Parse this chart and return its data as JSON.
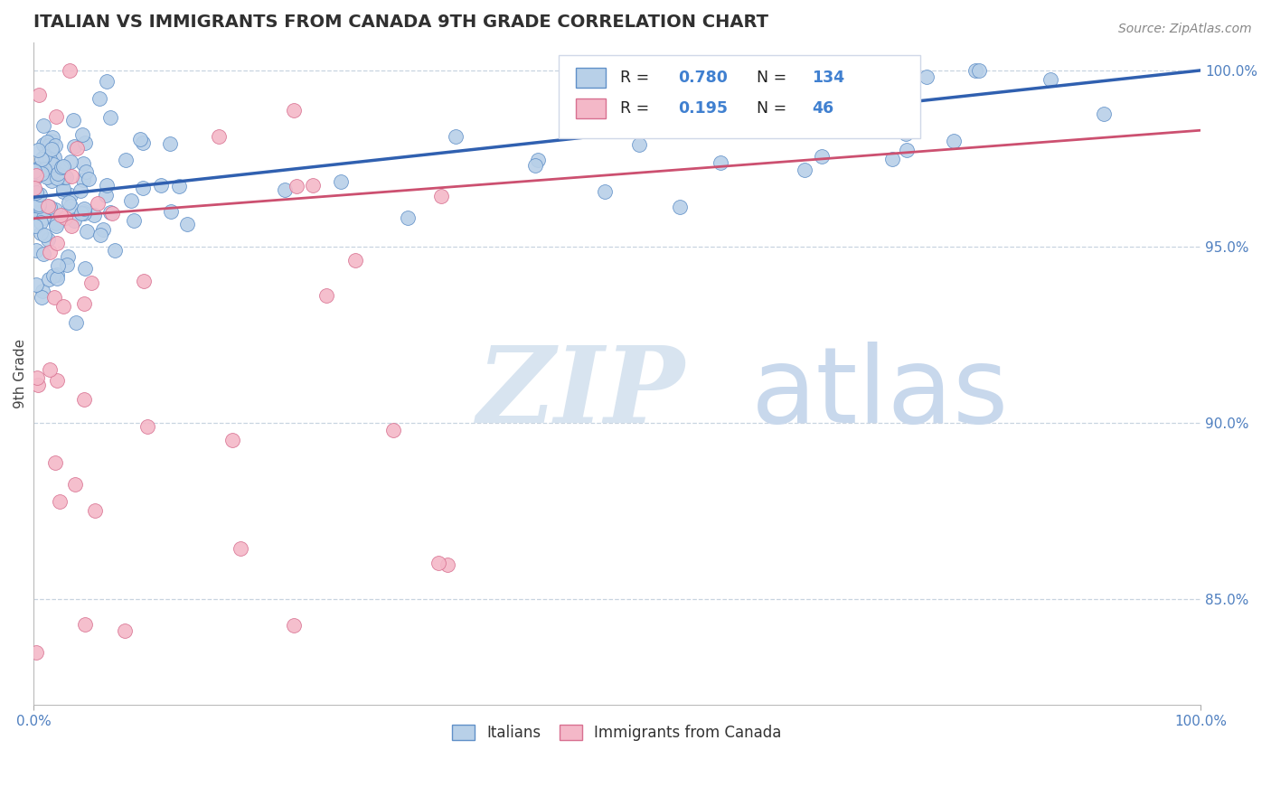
{
  "title": "ITALIAN VS IMMIGRANTS FROM CANADA 9TH GRADE CORRELATION CHART",
  "source_text": "Source: ZipAtlas.com",
  "ylabel": "9th Grade",
  "right_yticks": [
    85.0,
    90.0,
    95.0,
    100.0
  ],
  "right_ytick_labels": [
    "85.0%",
    "90.0%",
    "95.0%",
    "100.0%"
  ],
  "blue_R": 0.78,
  "blue_N": 134,
  "pink_R": 0.195,
  "pink_N": 46,
  "blue_color": "#b8d0e8",
  "blue_edge_color": "#6090c8",
  "blue_line_color": "#3060b0",
  "pink_color": "#f4b8c8",
  "pink_edge_color": "#d87090",
  "pink_line_color": "#cc5070",
  "background_color": "#ffffff",
  "grid_color": "#c8d4e0",
  "title_color": "#303030",
  "axis_tick_color": "#5080c0",
  "right_label_color": "#5080c0",
  "legend_R_color": "#4080d0",
  "watermark_ZIP_color": "#d8e4f0",
  "watermark_atlas_color": "#c8d8ec",
  "xlim": [
    0.0,
    1.0
  ],
  "ylim": [
    0.82,
    1.008
  ],
  "xticklabels": [
    "0.0%",
    "100.0%"
  ]
}
